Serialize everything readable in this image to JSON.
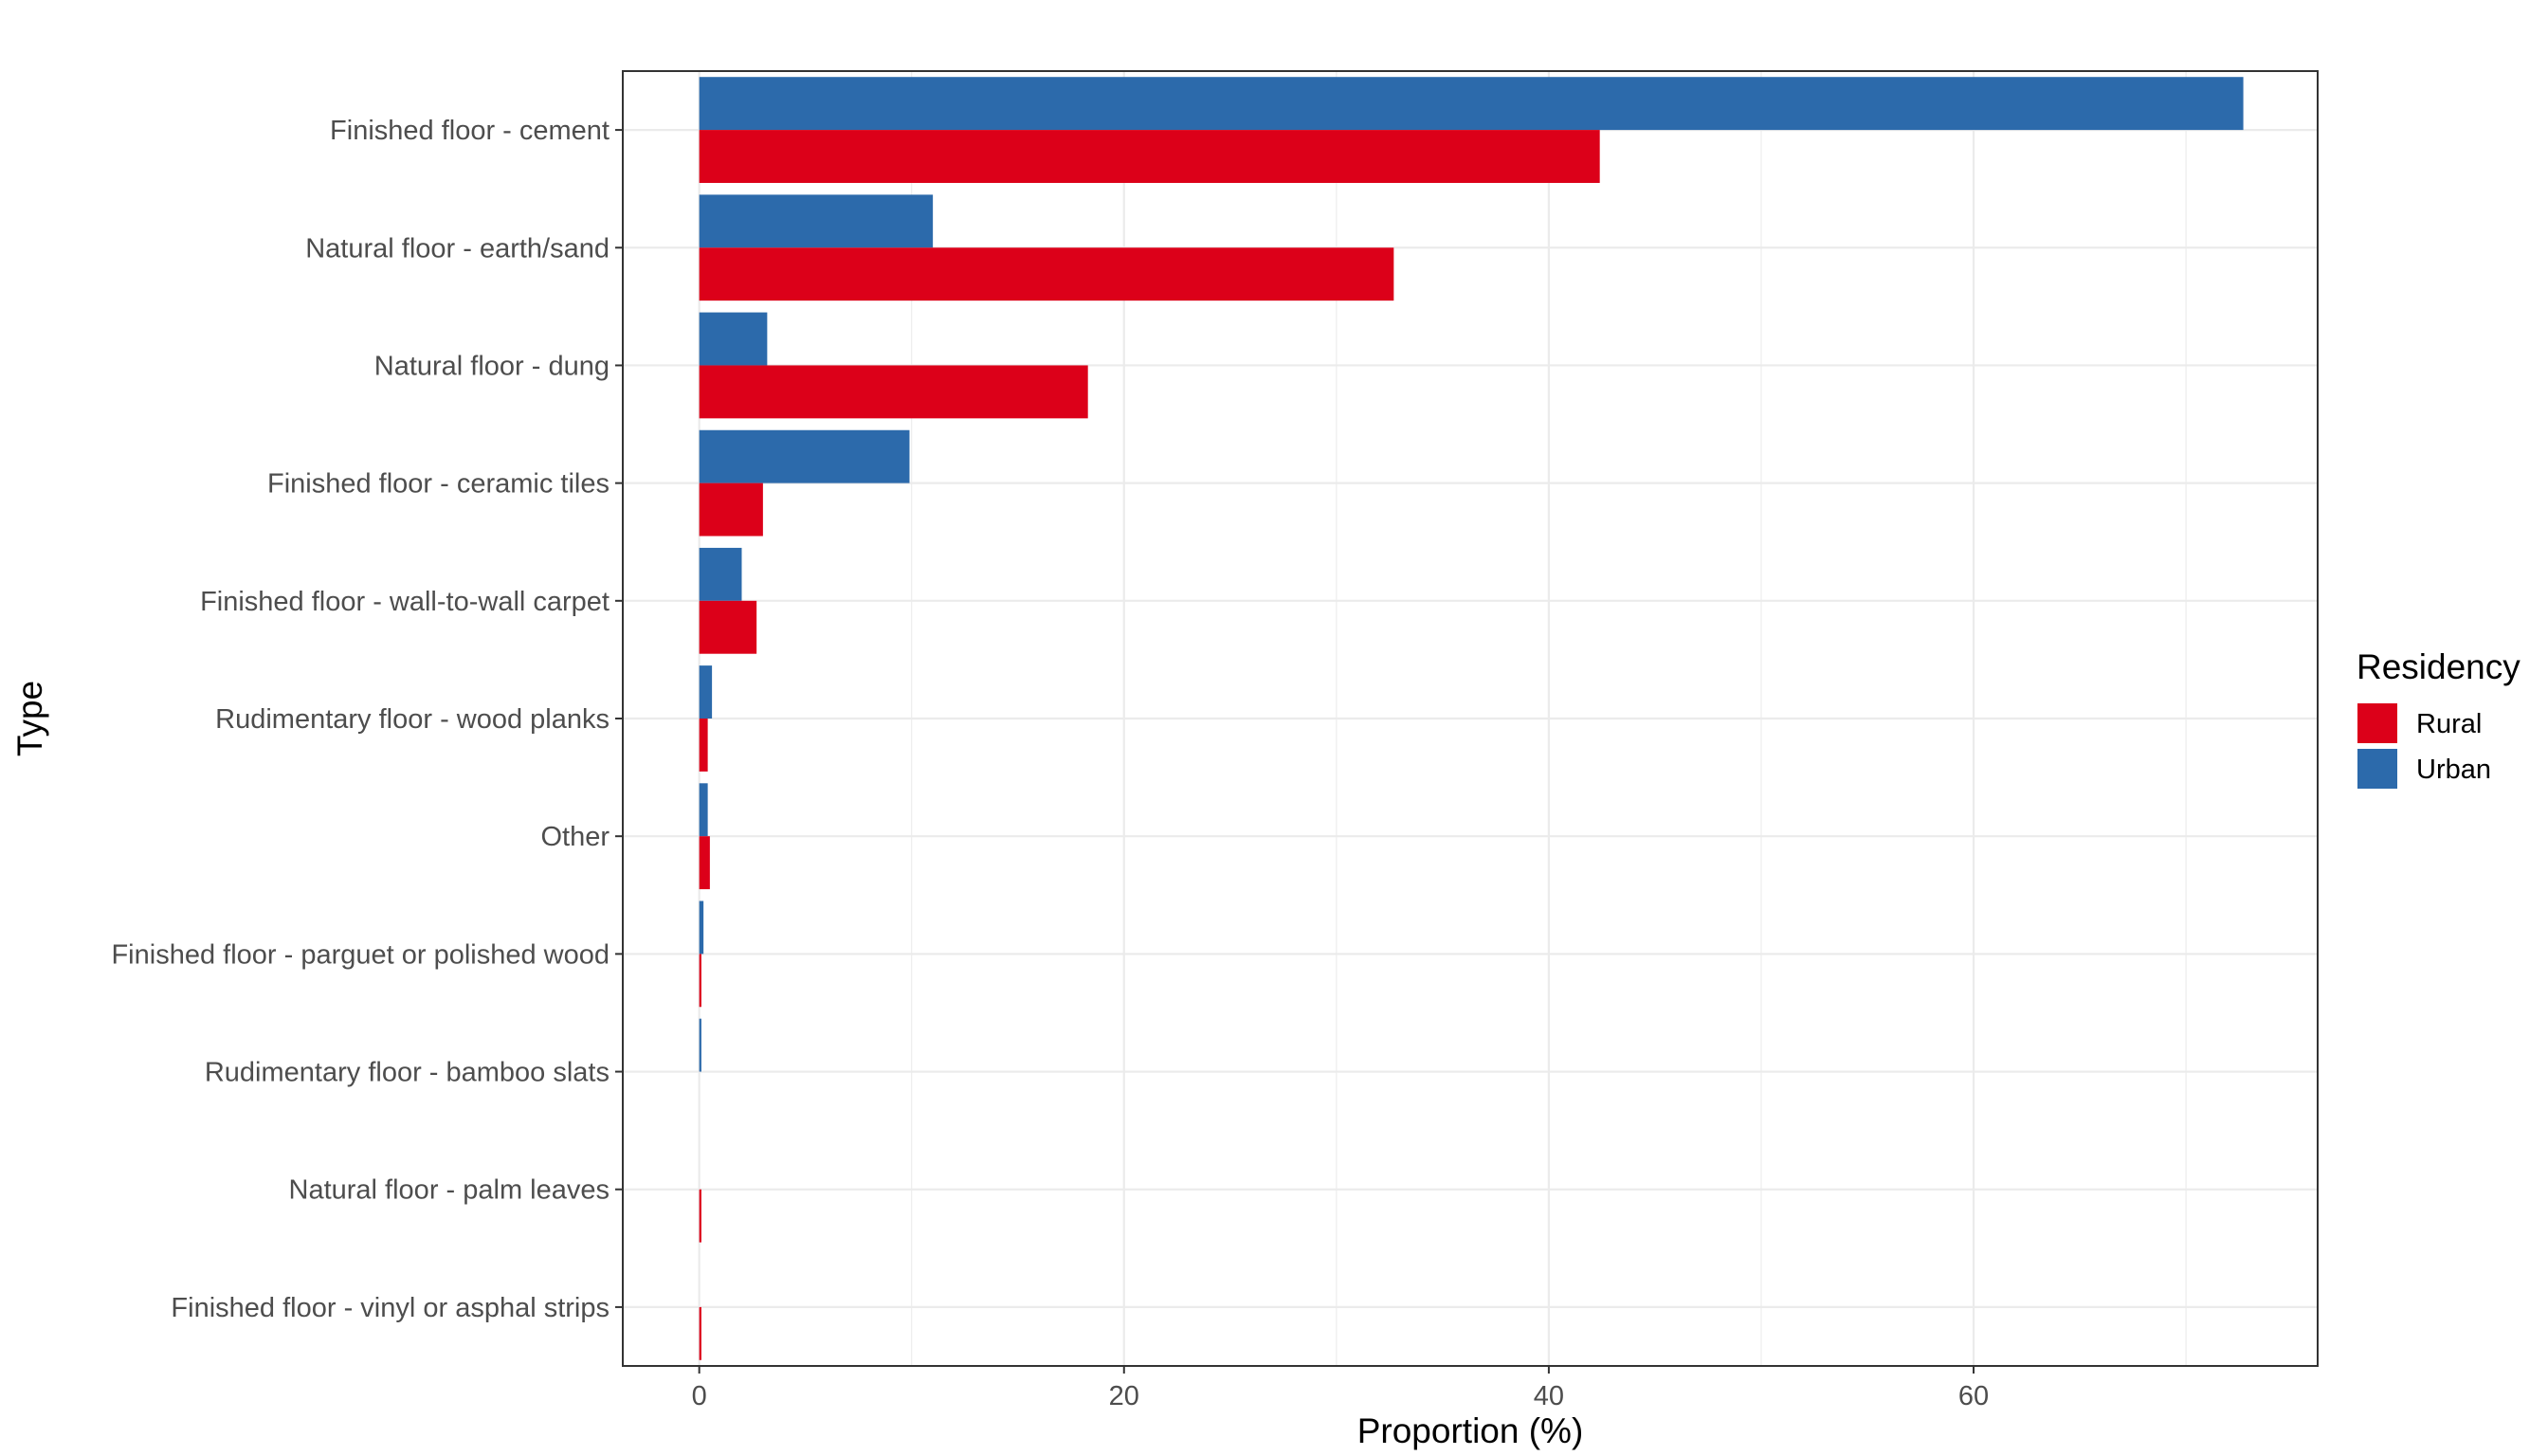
{
  "chart_data": {
    "type": "bar",
    "orientation": "horizontal",
    "xlabel": "Proportion (%)",
    "ylabel": "Type",
    "xlim": [
      -3.6,
      76.2
    ],
    "xticks": [
      0,
      20,
      40,
      60
    ],
    "xtick_labels": [
      "0",
      "20",
      "40",
      "60"
    ],
    "grid": true,
    "legend": {
      "title": "Residency",
      "placement": "right"
    },
    "categories": [
      "Finished floor - cement",
      "Natural floor - earth/sand",
      "Natural floor - dung",
      "Finished floor - ceramic tiles",
      "Finished floor - wall-to-wall carpet",
      "Rudimentary floor - wood planks",
      "Other",
      "Finished floor - parguet or polished wood",
      "Rudimentary floor - bamboo slats",
      "Natural floor - palm leaves",
      "Finished floor - vinyl or asphal strips"
    ],
    "series": [
      {
        "name": "Rural",
        "color": "#dc0019",
        "values": [
          42.4,
          32.7,
          18.3,
          3.0,
          2.7,
          0.4,
          0.5,
          0.1,
          0.0,
          0.1,
          0.1
        ]
      },
      {
        "name": "Urban",
        "color": "#2c6aab",
        "values": [
          72.7,
          11.0,
          3.2,
          9.9,
          2.0,
          0.6,
          0.4,
          0.2,
          0.1,
          0.0,
          0.0
        ]
      }
    ]
  }
}
